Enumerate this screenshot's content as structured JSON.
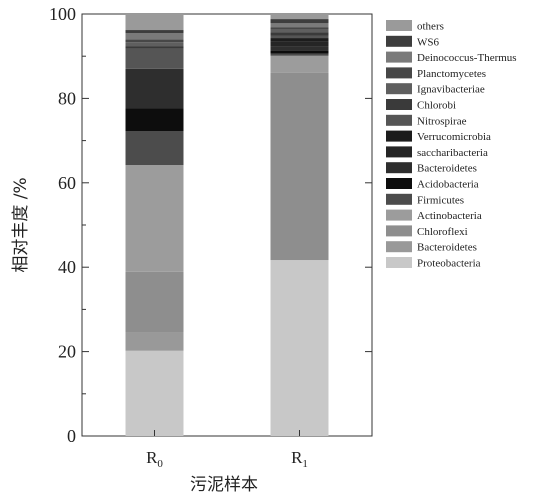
{
  "chart_data": {
    "type": "bar",
    "stacked": true,
    "categories": [
      {
        "base": "R",
        "sub": "0"
      },
      {
        "base": "R",
        "sub": "1"
      }
    ],
    "xlabel": "污泥样本",
    "ylabel": "相对丰度 /%",
    "ylim": [
      0,
      100
    ],
    "yticks": [
      0,
      20,
      40,
      60,
      80,
      100
    ],
    "legend_position": "right",
    "series": [
      {
        "name": "Proteobacteria",
        "color": "#c8c8c8",
        "values": [
          20.2,
          41.7
        ]
      },
      {
        "name": "Bacteroidetes",
        "color": "#999999",
        "values": [
          4.3,
          0.0
        ]
      },
      {
        "name": "Chloroflexi",
        "color": "#8e8e8e",
        "values": [
          14.4,
          44.4
        ]
      },
      {
        "name": "Actinobacteria",
        "color": "#9c9c9c",
        "values": [
          25.3,
          4.0
        ]
      },
      {
        "name": "Firmicutes",
        "color": "#4c4c4c",
        "values": [
          8.0,
          0.5
        ]
      },
      {
        "name": "Acidobacteria",
        "color": "#0d0d0d",
        "values": [
          5.4,
          0.8
        ]
      },
      {
        "name": "Bacteroidetes",
        "color": "#2e2e2e",
        "values": [
          9.4,
          1.0
        ]
      },
      {
        "name": "saccharibacteria",
        "color": "#252525",
        "values": [
          0.0,
          1.0
        ]
      },
      {
        "name": "Verrucomicrobia",
        "color": "#1c1c1c",
        "values": [
          0.0,
          0.9
        ]
      },
      {
        "name": "Nitrospirae",
        "color": "#555555",
        "values": [
          4.8,
          0.6
        ]
      },
      {
        "name": "Chlorobi",
        "color": "#3a3a3a",
        "values": [
          0.5,
          0.8
        ]
      },
      {
        "name": "Ignavibacteriae",
        "color": "#5f5f5f",
        "values": [
          1.0,
          0.6
        ]
      },
      {
        "name": "Planctomycetes",
        "color": "#474747",
        "values": [
          0.7,
          0.5
        ]
      },
      {
        "name": "Deinococcus-Thermus",
        "color": "#7a7a7a",
        "values": [
          1.5,
          1.0
        ]
      },
      {
        "name": "WS6",
        "color": "#3d3d3d",
        "values": [
          0.7,
          1.0
        ]
      },
      {
        "name": "others",
        "color": "#9a9a9a",
        "values": [
          3.8,
          1.2
        ]
      }
    ]
  }
}
